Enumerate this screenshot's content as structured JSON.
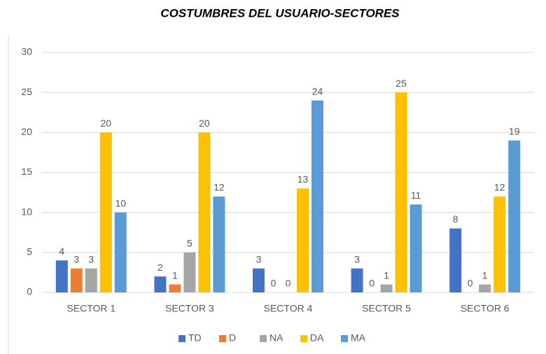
{
  "chart_data": {
    "type": "bar",
    "title": "COSTUMBRES DEL USUARIO-SECTORES",
    "categories": [
      "SECTOR 1",
      "SECTOR 3",
      "SECTOR 4",
      "SECTOR 5",
      "SECTOR 6"
    ],
    "series": [
      {
        "name": "TD",
        "color": "#4472c4",
        "values": [
          4,
          2,
          3,
          3,
          8
        ]
      },
      {
        "name": "D",
        "color": "#ed7d31",
        "values": [
          3,
          1,
          0,
          0,
          0
        ]
      },
      {
        "name": "NA",
        "color": "#a5a5a5",
        "values": [
          3,
          5,
          0,
          1,
          1
        ]
      },
      {
        "name": "DA",
        "color": "#ffc000",
        "values": [
          20,
          20,
          13,
          25,
          12
        ]
      },
      {
        "name": "MA",
        "color": "#5b9bd5",
        "values": [
          10,
          12,
          24,
          11,
          19
        ]
      }
    ],
    "ylim": [
      0,
      30
    ],
    "yticks": [
      0,
      5,
      10,
      15,
      20,
      25,
      30
    ],
    "grid": true,
    "legend": "bottom"
  }
}
